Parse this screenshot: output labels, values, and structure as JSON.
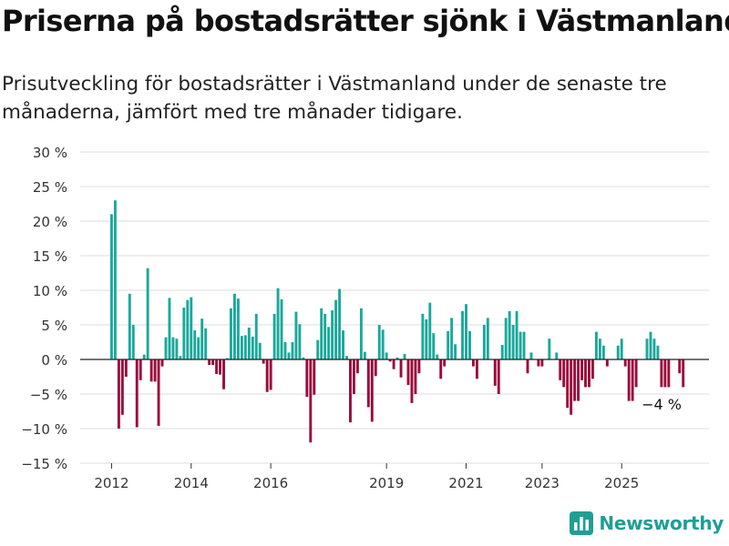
{
  "header": {
    "title": "Priserna på bostadsrätter sjönk i Västmanland",
    "subtitle": "Prisutveckling för bostadsrätter i Västmanland under de senaste tre månaderna, jämfört med tre månader tidigare."
  },
  "brand": {
    "name": "Newsworthy",
    "color": "#1f9e94"
  },
  "chart_data": {
    "type": "bar",
    "title": "Priserna på bostadsrätter sjönk i Västmanland",
    "xlabel": "",
    "ylabel": "",
    "ylim": [
      -15,
      30
    ],
    "y_ticks": [
      30,
      25,
      20,
      15,
      10,
      5,
      0,
      -5,
      -10,
      -15
    ],
    "y_tick_labels": [
      "30 %",
      "25 %",
      "20 %",
      "15 %",
      "10 %",
      "5 %",
      "0 %",
      "−5 %",
      "−10 %",
      "−15 %"
    ],
    "x_tick_labels": [
      "2012",
      "2014",
      "2016",
      "2019",
      "2021",
      "2023",
      "2025"
    ],
    "x_tick_index": [
      0,
      22,
      44,
      76,
      98,
      119,
      141
    ],
    "grid": true,
    "positive_color": "#1ba89b",
    "negative_color": "#9a0a3c",
    "annotation": {
      "text": "−4 %",
      "index": 147
    },
    "values": [
      21,
      23,
      -10,
      -8,
      -2.5,
      9.5,
      5,
      -9.8,
      -3,
      0.7,
      13.2,
      -3.2,
      -3.2,
      -9.6,
      -1,
      3.2,
      8.9,
      3.2,
      3,
      0.5,
      7.5,
      8.6,
      9,
      4.2,
      3.2,
      5.9,
      4.5,
      -0.8,
      -0.8,
      -2.1,
      -2.2,
      -4.3,
      0.2,
      7.4,
      9.5,
      8.8,
      3.4,
      3.5,
      4.6,
      3.3,
      6.6,
      2.4,
      -0.6,
      -4.7,
      -4.4,
      6.6,
      10.3,
      8.7,
      2.5,
      1,
      2.5,
      6.9,
      5.1,
      0.3,
      -5.4,
      -12,
      -5.1,
      2.8,
      7.4,
      6.6,
      4.7,
      7.1,
      8.6,
      10.2,
      4.2,
      0.5,
      -9.1,
      -5,
      -2,
      7.4,
      1.1,
      -6.9,
      -9,
      -2.4,
      5,
      4.3,
      1,
      -0.3,
      -1.4,
      0.3,
      -2.6,
      0.8,
      -3.7,
      -6.3,
      -5,
      -2,
      6.6,
      5.8,
      8.2,
      3.8,
      0.7,
      -2.8,
      -1,
      4.1,
      6,
      2.2,
      0.1,
      7,
      8,
      4.1,
      -1,
      -2.8,
      0,
      5,
      6,
      0,
      -3.8,
      -5,
      2.1,
      6,
      7,
      5,
      7,
      4,
      4,
      -2,
      1,
      0,
      -1,
      -1,
      0,
      3,
      0,
      1,
      -3,
      -4,
      -7,
      -8,
      -6,
      -6,
      -3,
      -4,
      -4,
      -2.8,
      4,
      3,
      2,
      -1,
      0,
      0,
      2,
      3,
      -1,
      -6,
      -6,
      -4,
      0,
      0,
      3,
      4,
      3,
      2,
      -4,
      -4,
      -4,
      0,
      0,
      -2,
      -4
    ]
  }
}
